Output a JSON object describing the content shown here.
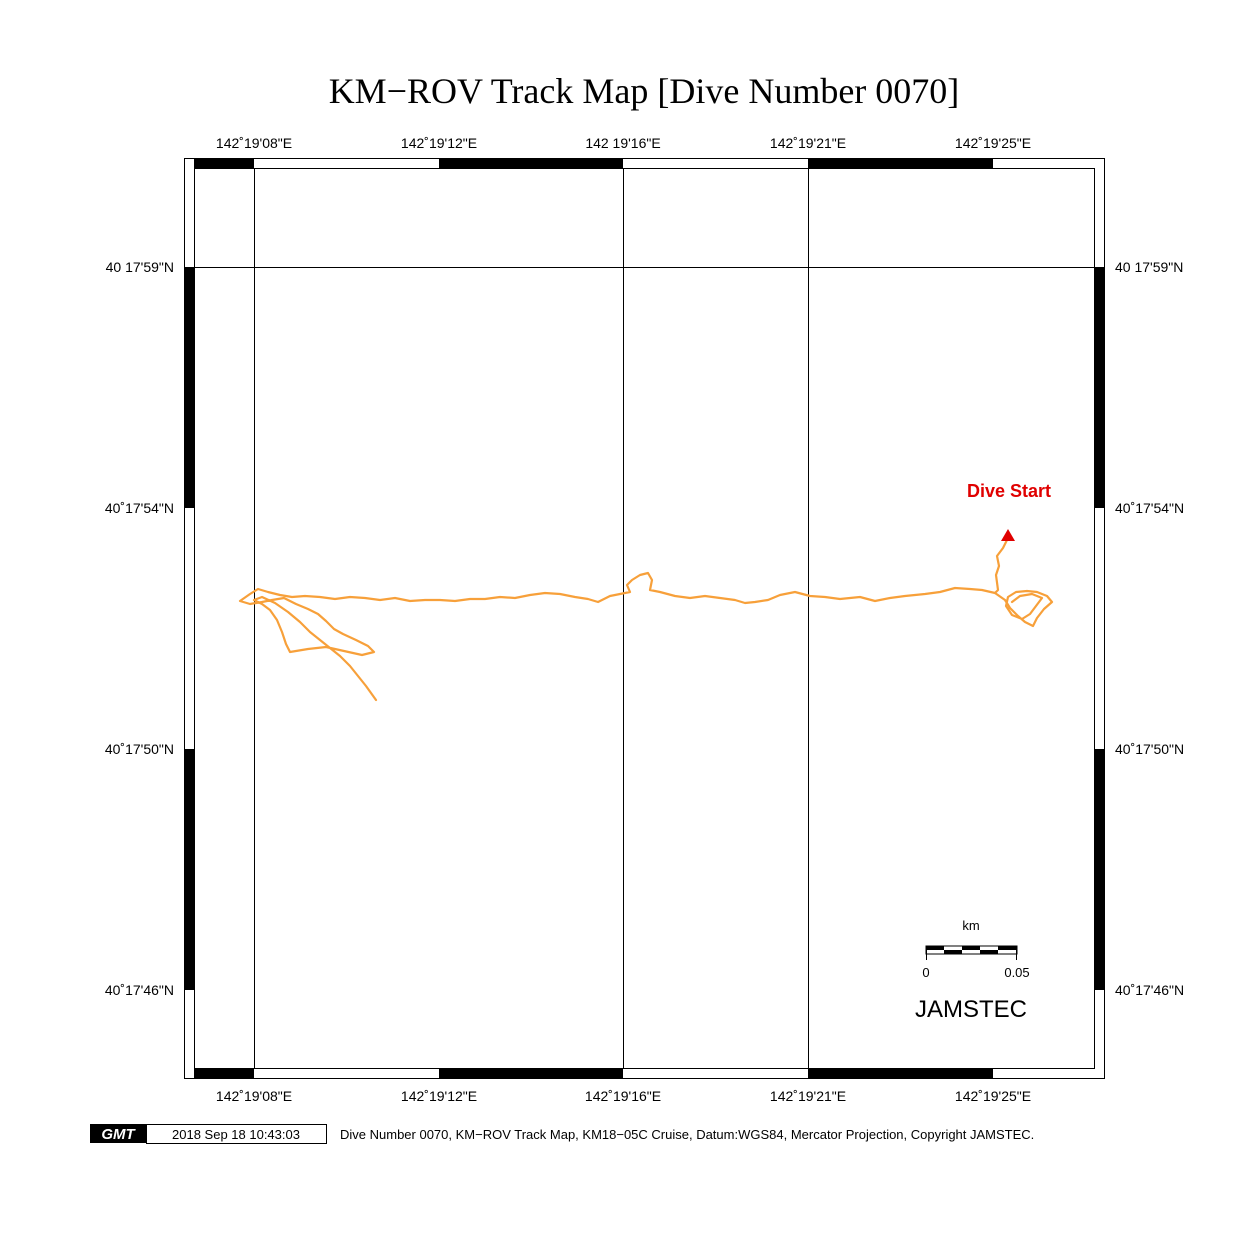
{
  "title": "KM−ROV Track Map [Dive Number 0070]",
  "colors": {
    "track": "#f7a03a",
    "start_marker": "#e00000",
    "frame": "#000000"
  },
  "axes": {
    "top_labels": [
      "142˚19'08\"E",
      "142˚19'12\"E",
      "142 19'16\"E",
      "142˚19'21\"E",
      "142˚19'25\"E"
    ],
    "bottom_labels": [
      "142˚19'08\"E",
      "142˚19'12\"E",
      "142˚19'16\"E",
      "142˚19'21\"E",
      "142˚19'25\"E"
    ],
    "left_labels": [
      "40 17'59\"N",
      "40˚17'54\"N",
      "40˚17'50\"N",
      "40˚17'46\"N"
    ],
    "right_labels": [
      "40 17'59\"N",
      "40˚17'54\"N",
      "40˚17'50\"N",
      "40˚17'46\"N"
    ],
    "grid": true
  },
  "annotations": {
    "dive_start": "Dive Start"
  },
  "scale_bar": {
    "unit": "km",
    "min_label": "0",
    "max_label": "0.05"
  },
  "org_label": "JAMSTEC",
  "footer": {
    "logo_text": "GMT",
    "timestamp": "2018 Sep 18 10:43:03",
    "caption": "Dive Number 0070, KM−ROV Track Map, KM18−05C Cruise, Datum:WGS84, Mercator Projection, Copyright JAMSTEC."
  }
}
